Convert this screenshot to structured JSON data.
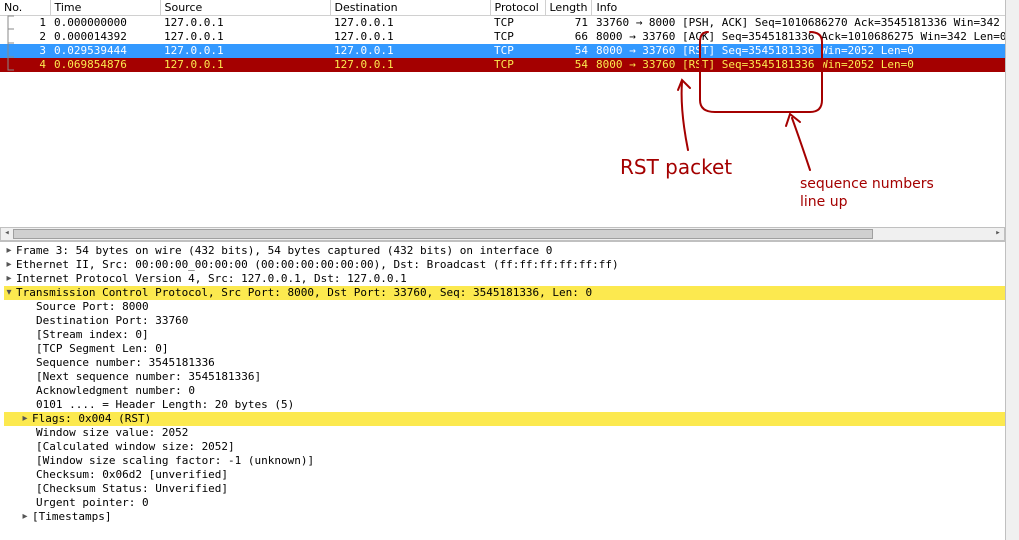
{
  "columns": {
    "no": "No.",
    "time": "Time",
    "source": "Source",
    "destination": "Destination",
    "protocol": "Protocol",
    "length": "Length",
    "info": "Info"
  },
  "packets": [
    {
      "no": "1",
      "time": "0.000000000",
      "src": "127.0.0.1",
      "dst": "127.0.0.1",
      "proto": "TCP",
      "len": "71",
      "info": "33760 → 8000 [PSH, ACK] Seq=1010686270 Ack=3545181336 Win=342",
      "row_class": "row-normal"
    },
    {
      "no": "2",
      "time": "0.000014392",
      "src": "127.0.0.1",
      "dst": "127.0.0.1",
      "proto": "TCP",
      "len": "66",
      "info": "8000 → 33760 [ACK] Seq=3545181336 Ack=1010686275 Win=342 Len=0",
      "row_class": "row-normal"
    },
    {
      "no": "3",
      "time": "0.029539444",
      "src": "127.0.0.1",
      "dst": "127.0.0.1",
      "proto": "TCP",
      "len": "54",
      "info": "8000 → 33760 [RST] Seq=3545181336 Win=2052 Len=0",
      "row_class": "row-selected"
    },
    {
      "no": "4",
      "time": "0.069854876",
      "src": "127.0.0.1",
      "dst": "127.0.0.1",
      "proto": "TCP",
      "len": "54",
      "info": "8000 → 33760 [RST] Seq=3545181336 Win=2052 Len=0",
      "row_class": "row-rst"
    }
  ],
  "annotations": {
    "label1": "RST packet",
    "label2_line1": "sequence numbers",
    "label2_line2": "line up",
    "ink_color": "#a40000"
  },
  "details": {
    "frame": "Frame 3: 54 bytes on wire (432 bits), 54 bytes captured (432 bits) on interface 0",
    "eth": "Ethernet II, Src: 00:00:00_00:00:00 (00:00:00:00:00:00), Dst: Broadcast (ff:ff:ff:ff:ff:ff)",
    "ip": "Internet Protocol Version 4, Src: 127.0.0.1, Dst: 127.0.0.1",
    "tcp": "Transmission Control Protocol, Src Port: 8000, Dst Port: 33760, Seq: 3545181336, Len: 0",
    "tcp_fields": {
      "src_port": "Source Port: 8000",
      "dst_port": "Destination Port: 33760",
      "stream": "[Stream index: 0]",
      "seglen": "[TCP Segment Len: 0]",
      "seq": "Sequence number: 3545181336",
      "nextseq": "[Next sequence number: 3545181336]",
      "ack": "Acknowledgment number: 0",
      "hdrlen": "0101 .... = Header Length: 20 bytes (5)",
      "flags": "Flags: 0x004 (RST)",
      "winsize": "Window size value: 2052",
      "calcwin": "[Calculated window size: 2052]",
      "winscale": "[Window size scaling factor: -1 (unknown)]",
      "checksum": "Checksum: 0x06d2 [unverified]",
      "chkstatus": "[Checksum Status: Unverified]",
      "urgent": "Urgent pointer: 0",
      "timestamps": "[Timestamps]"
    }
  },
  "colors": {
    "selected_bg": "#3399ff",
    "selected_fg": "#ffffff",
    "rst_bg": "#a40000",
    "rst_fg": "#fce94f",
    "highlight_bg": "#fce94f"
  }
}
